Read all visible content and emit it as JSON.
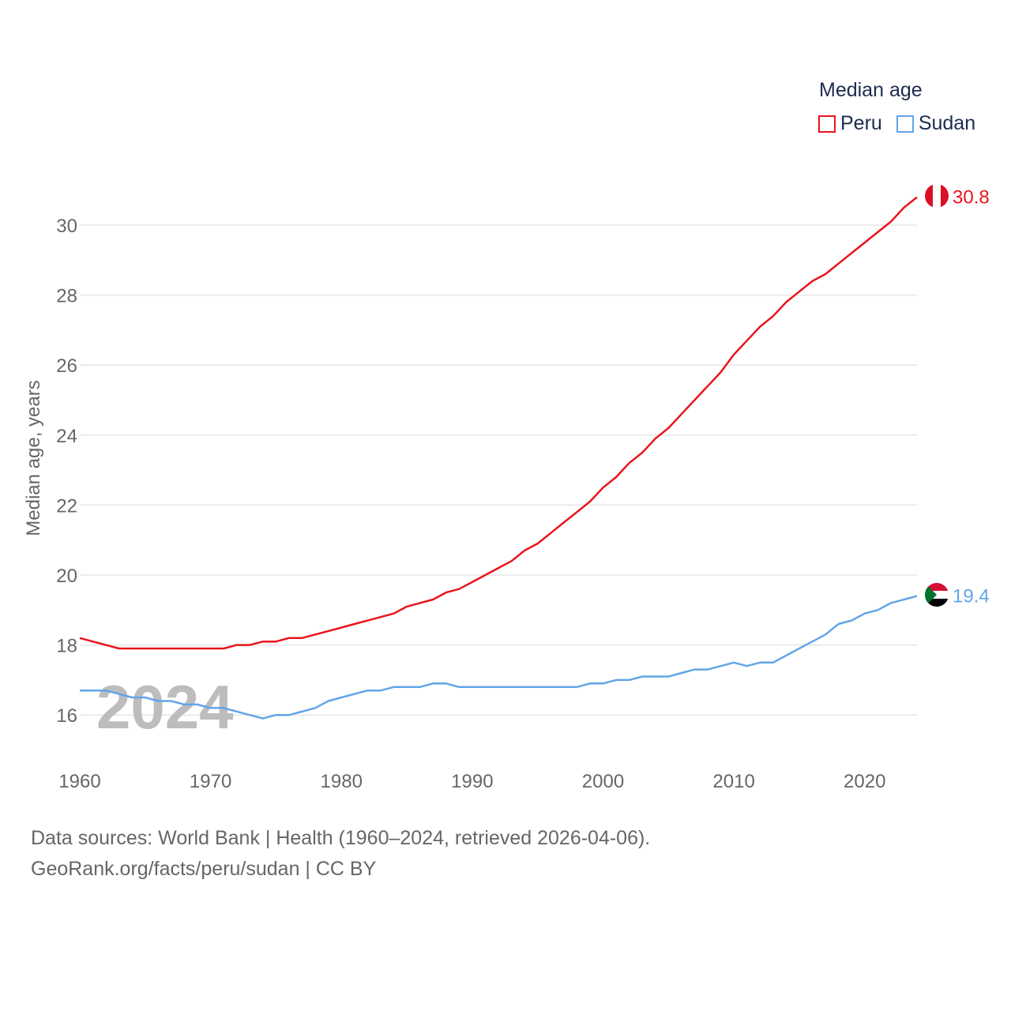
{
  "legend": {
    "title": "Median age",
    "items": [
      {
        "label": "Peru",
        "color": "#e8151c"
      },
      {
        "label": "Sudan",
        "color": "#63a5e8"
      }
    ]
  },
  "year_watermark": "2024",
  "footer": {
    "line1": "Data sources: World Bank | Health (1960–2024, retrieved 2026-04-06).",
    "line2": "GeoRank.org/facts/peru/sudan | CC BY"
  },
  "chart_data": {
    "type": "line",
    "title": "Median age",
    "xlabel": "",
    "ylabel": "Median age, years",
    "xlim": [
      1960,
      2024
    ],
    "ylim": [
      15,
      31.6
    ],
    "x_ticks": [
      1960,
      1970,
      1980,
      1990,
      2000,
      2010,
      2020
    ],
    "y_ticks": [
      16,
      18,
      20,
      22,
      24,
      26,
      28,
      30
    ],
    "grid": true,
    "legend_position": "top-right",
    "x": [
      1960,
      1961,
      1962,
      1963,
      1964,
      1965,
      1966,
      1967,
      1968,
      1969,
      1970,
      1971,
      1972,
      1973,
      1974,
      1975,
      1976,
      1977,
      1978,
      1979,
      1980,
      1981,
      1982,
      1983,
      1984,
      1985,
      1986,
      1987,
      1988,
      1989,
      1990,
      1991,
      1992,
      1993,
      1994,
      1995,
      1996,
      1997,
      1998,
      1999,
      2000,
      2001,
      2002,
      2003,
      2004,
      2005,
      2006,
      2007,
      2008,
      2009,
      2010,
      2011,
      2012,
      2013,
      2014,
      2015,
      2016,
      2017,
      2018,
      2019,
      2020,
      2021,
      2022,
      2023,
      2024
    ],
    "series": [
      {
        "name": "Peru",
        "color": "#e8151c",
        "end_label": "30.8",
        "flag": "peru-flag",
        "values": [
          18.2,
          18.1,
          18.0,
          17.9,
          17.9,
          17.9,
          17.9,
          17.9,
          17.9,
          17.9,
          17.9,
          17.9,
          18.0,
          18.0,
          18.1,
          18.1,
          18.2,
          18.2,
          18.3,
          18.4,
          18.5,
          18.6,
          18.7,
          18.8,
          18.9,
          19.1,
          19.2,
          19.3,
          19.5,
          19.6,
          19.8,
          20.0,
          20.2,
          20.4,
          20.7,
          20.9,
          21.2,
          21.5,
          21.8,
          22.1,
          22.5,
          22.8,
          23.2,
          23.5,
          23.9,
          24.2,
          24.6,
          25.0,
          25.4,
          25.8,
          26.3,
          26.7,
          27.1,
          27.4,
          27.8,
          28.1,
          28.4,
          28.6,
          28.9,
          29.2,
          29.5,
          29.8,
          30.1,
          30.5,
          30.8
        ]
      },
      {
        "name": "Sudan",
        "color": "#63a5e8",
        "end_label": "19.4",
        "flag": "sudan-flag",
        "values": [
          16.7,
          16.7,
          16.7,
          16.6,
          16.5,
          16.5,
          16.4,
          16.4,
          16.3,
          16.3,
          16.2,
          16.2,
          16.1,
          16.0,
          15.9,
          16.0,
          16.0,
          16.1,
          16.2,
          16.4,
          16.5,
          16.6,
          16.7,
          16.7,
          16.8,
          16.8,
          16.8,
          16.9,
          16.9,
          16.8,
          16.8,
          16.8,
          16.8,
          16.8,
          16.8,
          16.8,
          16.8,
          16.8,
          16.8,
          16.9,
          16.9,
          17.0,
          17.0,
          17.1,
          17.1,
          17.1,
          17.2,
          17.3,
          17.3,
          17.4,
          17.5,
          17.4,
          17.5,
          17.5,
          17.7,
          17.9,
          18.1,
          18.3,
          18.6,
          18.7,
          18.9,
          19.0,
          19.2,
          19.3,
          19.4
        ]
      }
    ]
  }
}
